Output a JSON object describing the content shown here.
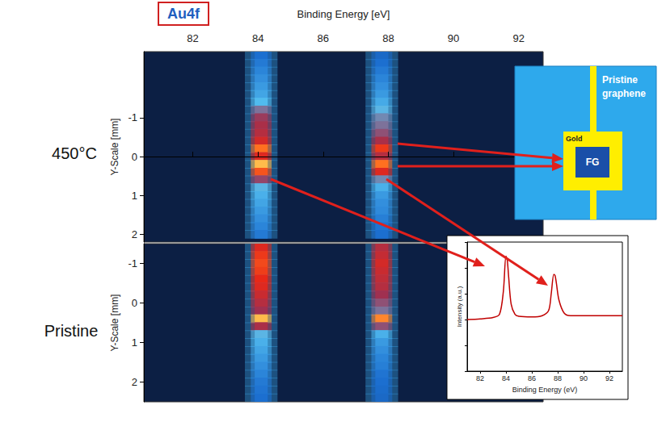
{
  "chart_data": [
    {
      "type": "heatmap",
      "title": "Au4f",
      "annotations": [
        "450°C"
      ],
      "xlabel": "Binding Energy [eV]",
      "ylabel": "Y-Scale [mm]",
      "xlim": [
        80.5,
        92.75
      ],
      "xticks": [
        82,
        84,
        86,
        88,
        90,
        92
      ],
      "ylim": [
        -2.7,
        2.2
      ],
      "yticks": [
        -1,
        0,
        1,
        2
      ],
      "color_range": [
        0,
        100
      ],
      "x": [
        84.1,
        87.8
      ],
      "y": [
        -2.6,
        -2.4,
        -2.2,
        -2.0,
        -1.8,
        -1.6,
        -1.4,
        -1.2,
        -1.0,
        -0.8,
        -0.6,
        -0.4,
        -0.2,
        0.0,
        0.2,
        0.4,
        0.6,
        0.8,
        1.0,
        1.2,
        1.4,
        1.6,
        1.8,
        2.0
      ],
      "intensity": [
        [
          30,
          28
        ],
        [
          32,
          30
        ],
        [
          34,
          32
        ],
        [
          36,
          34
        ],
        [
          38,
          36
        ],
        [
          40,
          38
        ],
        [
          44,
          41
        ],
        [
          52,
          46
        ],
        [
          57,
          50
        ],
        [
          60,
          52
        ],
        [
          62,
          55
        ],
        [
          68,
          60
        ],
        [
          85,
          75
        ],
        [
          70,
          62
        ],
        [
          95,
          85
        ],
        [
          80,
          70
        ],
        [
          56,
          50
        ],
        [
          46,
          42
        ],
        [
          42,
          38
        ],
        [
          40,
          36
        ],
        [
          38,
          35
        ],
        [
          36,
          33
        ],
        [
          34,
          31
        ],
        [
          32,
          30
        ]
      ]
    },
    {
      "type": "heatmap",
      "annotations": [
        "Pristine"
      ],
      "ylabel": "Y-Scale [mm]",
      "tick_labels": "y",
      "xlim": [
        80.5,
        92.75
      ],
      "ylim": [
        -1.5,
        2.5
      ],
      "yticks": [
        -1,
        0,
        1,
        2
      ],
      "color_range": [
        0,
        100
      ],
      "x": [
        84.1,
        87.8
      ],
      "y": [
        -1.4,
        -1.2,
        -1.0,
        -0.8,
        -0.6,
        -0.4,
        -0.2,
        0.0,
        0.2,
        0.4,
        0.6,
        0.8,
        1.0,
        1.2,
        1.4,
        1.6,
        1.8,
        2.0,
        2.2,
        2.4
      ],
      "intensity": [
        [
          70,
          62
        ],
        [
          75,
          65
        ],
        [
          78,
          68
        ],
        [
          76,
          66
        ],
        [
          72,
          64
        ],
        [
          70,
          62
        ],
        [
          66,
          58
        ],
        [
          62,
          55
        ],
        [
          58,
          52
        ],
        [
          95,
          88
        ],
        [
          60,
          55
        ],
        [
          46,
          42
        ],
        [
          42,
          38
        ],
        [
          40,
          36
        ],
        [
          38,
          34
        ],
        [
          36,
          33
        ],
        [
          34,
          31
        ],
        [
          32,
          30
        ],
        [
          31,
          29
        ],
        [
          30,
          28
        ]
      ]
    },
    {
      "type": "line",
      "xlabel": "Binding Energy (eV)",
      "ylabel": "Intensity (a.u.)",
      "tick_labels": "x",
      "color": "#c00000",
      "xlim": [
        81,
        93
      ],
      "xticks": [
        82,
        84,
        86,
        88,
        90,
        92
      ],
      "ylim": [
        0,
        100
      ],
      "yticks": [
        0,
        20,
        40,
        60,
        80,
        100
      ],
      "x": [
        81,
        82,
        83,
        83.5,
        83.8,
        84.0,
        84.1,
        84.2,
        84.4,
        84.7,
        85,
        86,
        86.8,
        87.3,
        87.5,
        87.7,
        87.8,
        87.9,
        88.1,
        88.5,
        89,
        90,
        91,
        92,
        93
      ],
      "values": [
        40,
        40.5,
        41.5,
        44,
        62,
        89,
        86,
        74,
        52,
        44,
        42.5,
        42,
        43,
        47,
        60,
        75,
        74,
        68,
        55,
        45,
        43,
        43,
        43,
        43,
        43
      ]
    }
  ],
  "diagram": {
    "graphene": "Pristine graphene",
    "gold": "Gold",
    "flake": "FG"
  }
}
